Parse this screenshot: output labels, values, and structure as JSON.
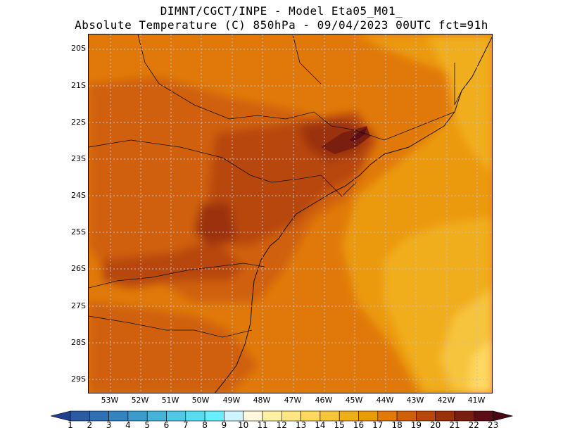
{
  "header": {
    "line1": "DIMNT/CGCT/INPE -  Model Eta05_M01_",
    "line2": "Absolute Temperature (C) 850hPa -  09/04/2023 00UTC fct=91h"
  },
  "map": {
    "lat_labels": [
      "20S",
      "21S",
      "22S",
      "23S",
      "24S",
      "25S",
      "26S",
      "27S",
      "28S",
      "29S"
    ],
    "lon_labels": [
      "53W",
      "52W",
      "51W",
      "50W",
      "49W",
      "48W",
      "47W",
      "46W",
      "45W",
      "44W",
      "43W",
      "42W",
      "41W"
    ]
  },
  "colorbar": {
    "levels": [
      "1",
      "2",
      "3",
      "4",
      "5",
      "6",
      "7",
      "8",
      "9",
      "10",
      "11",
      "12",
      "13",
      "14",
      "15",
      "16",
      "17",
      "18",
      "19",
      "20",
      "21",
      "22",
      "23"
    ],
    "colors": [
      "#1f3f8f",
      "#2a5aa4",
      "#2f6fb3",
      "#3384c0",
      "#3a9ccc",
      "#45b4d8",
      "#50c8e6",
      "#5adcf0",
      "#66f0ff",
      "#cdf5ff",
      "#fff8dc",
      "#fff1a0",
      "#ffe680",
      "#ffd860",
      "#f7c53d",
      "#f1ae1b",
      "#eb9a08",
      "#e0790a",
      "#d06008",
      "#b8470a",
      "#9b300b",
      "#7a1f10",
      "#5c0d17",
      "#4a0612"
    ]
  }
}
